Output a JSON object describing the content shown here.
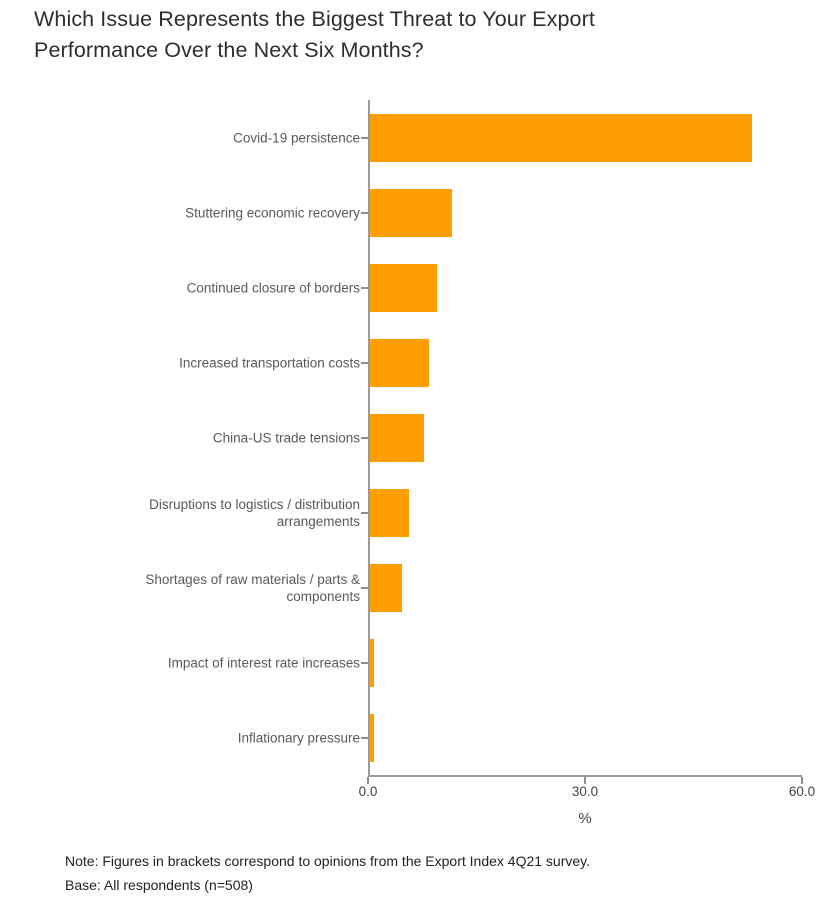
{
  "title": "Which Issue Represents the Biggest Threat to Your Export Performance Over the Next Six Months?",
  "chart_data": {
    "type": "bar",
    "orientation": "horizontal",
    "title": "Which Issue Represents the Biggest Threat to Your Export Performance Over the Next Six Months?",
    "categories": [
      "Covid-19 persistence",
      "Stuttering economic recovery",
      "Continued closure of borders",
      "Increased transportation costs",
      "China-US trade tensions",
      "Disruptions to logistics / distribution arrangements",
      "Shortages of raw materials / parts & components",
      "Impact of interest rate increases",
      "Inflationary pressure"
    ],
    "values": [
      52.8,
      11.3,
      9.3,
      8.1,
      7.4,
      5.4,
      4.4,
      0.6,
      0.6
    ],
    "xlabel": "%",
    "ylabel": "",
    "xlim": [
      0,
      60
    ],
    "xticks": [
      {
        "value": 0,
        "label": "0.0"
      },
      {
        "value": 30,
        "label": "30.0"
      },
      {
        "value": 60,
        "label": "60.0"
      }
    ],
    "grid": false,
    "legend": "none",
    "bar_color": "#ff9e00",
    "axis_color": "#9b9b9b"
  },
  "notes": {
    "line1": "Note: Figures in brackets correspond to opinions from the Export Index 4Q21 survey.",
    "line2": "Base: All respondents (n=508)"
  }
}
